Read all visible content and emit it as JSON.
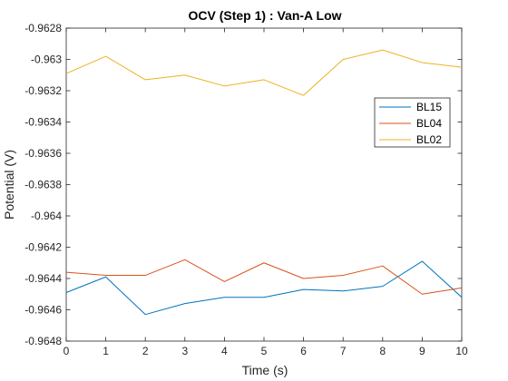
{
  "chart_data": {
    "type": "line",
    "title": "OCV (Step 1) : Van-A Low",
    "xlabel": "Time (s)",
    "ylabel": "Potential (V)",
    "xlim": [
      0,
      10
    ],
    "ylim": [
      -0.9648,
      -0.9628
    ],
    "x": [
      0,
      1,
      2,
      3,
      4,
      5,
      6,
      7,
      8,
      9,
      10
    ],
    "x_ticks": [
      "0",
      "1",
      "2",
      "3",
      "4",
      "5",
      "6",
      "7",
      "8",
      "9",
      "10"
    ],
    "y_ticks": [
      {
        "value": -0.9628,
        "label": "-0.9628"
      },
      {
        "value": -0.963,
        "label": "-0.963"
      },
      {
        "value": -0.9632,
        "label": "-0.9632"
      },
      {
        "value": -0.9634,
        "label": "-0.9634"
      },
      {
        "value": -0.9636,
        "label": "-0.9636"
      },
      {
        "value": -0.9638,
        "label": "-0.9638"
      },
      {
        "value": -0.964,
        "label": "-0.964"
      },
      {
        "value": -0.9642,
        "label": "-0.9642"
      },
      {
        "value": -0.9644,
        "label": "-0.9644"
      },
      {
        "value": -0.9646,
        "label": "-0.9646"
      },
      {
        "value": -0.9648,
        "label": "-0.9648"
      }
    ],
    "grid": false,
    "legend_position": "top-right",
    "series": [
      {
        "name": "BL15",
        "color": "#0072BD",
        "values": [
          -0.96449,
          -0.96439,
          -0.96463,
          -0.96456,
          -0.96452,
          -0.96452,
          -0.96447,
          -0.96448,
          -0.96445,
          -0.96429,
          -0.96452
        ]
      },
      {
        "name": "BL04",
        "color": "#D95319",
        "values": [
          -0.96436,
          -0.96438,
          -0.96438,
          -0.96428,
          -0.96442,
          -0.9643,
          -0.9644,
          -0.96438,
          -0.96432,
          -0.9645,
          -0.96446
        ]
      },
      {
        "name": "BL02",
        "color": "#EDB120",
        "values": [
          -0.96309,
          -0.96298,
          -0.96313,
          -0.9631,
          -0.96317,
          -0.96313,
          -0.96323,
          -0.963,
          -0.96294,
          -0.96302,
          -0.96305
        ]
      }
    ]
  }
}
